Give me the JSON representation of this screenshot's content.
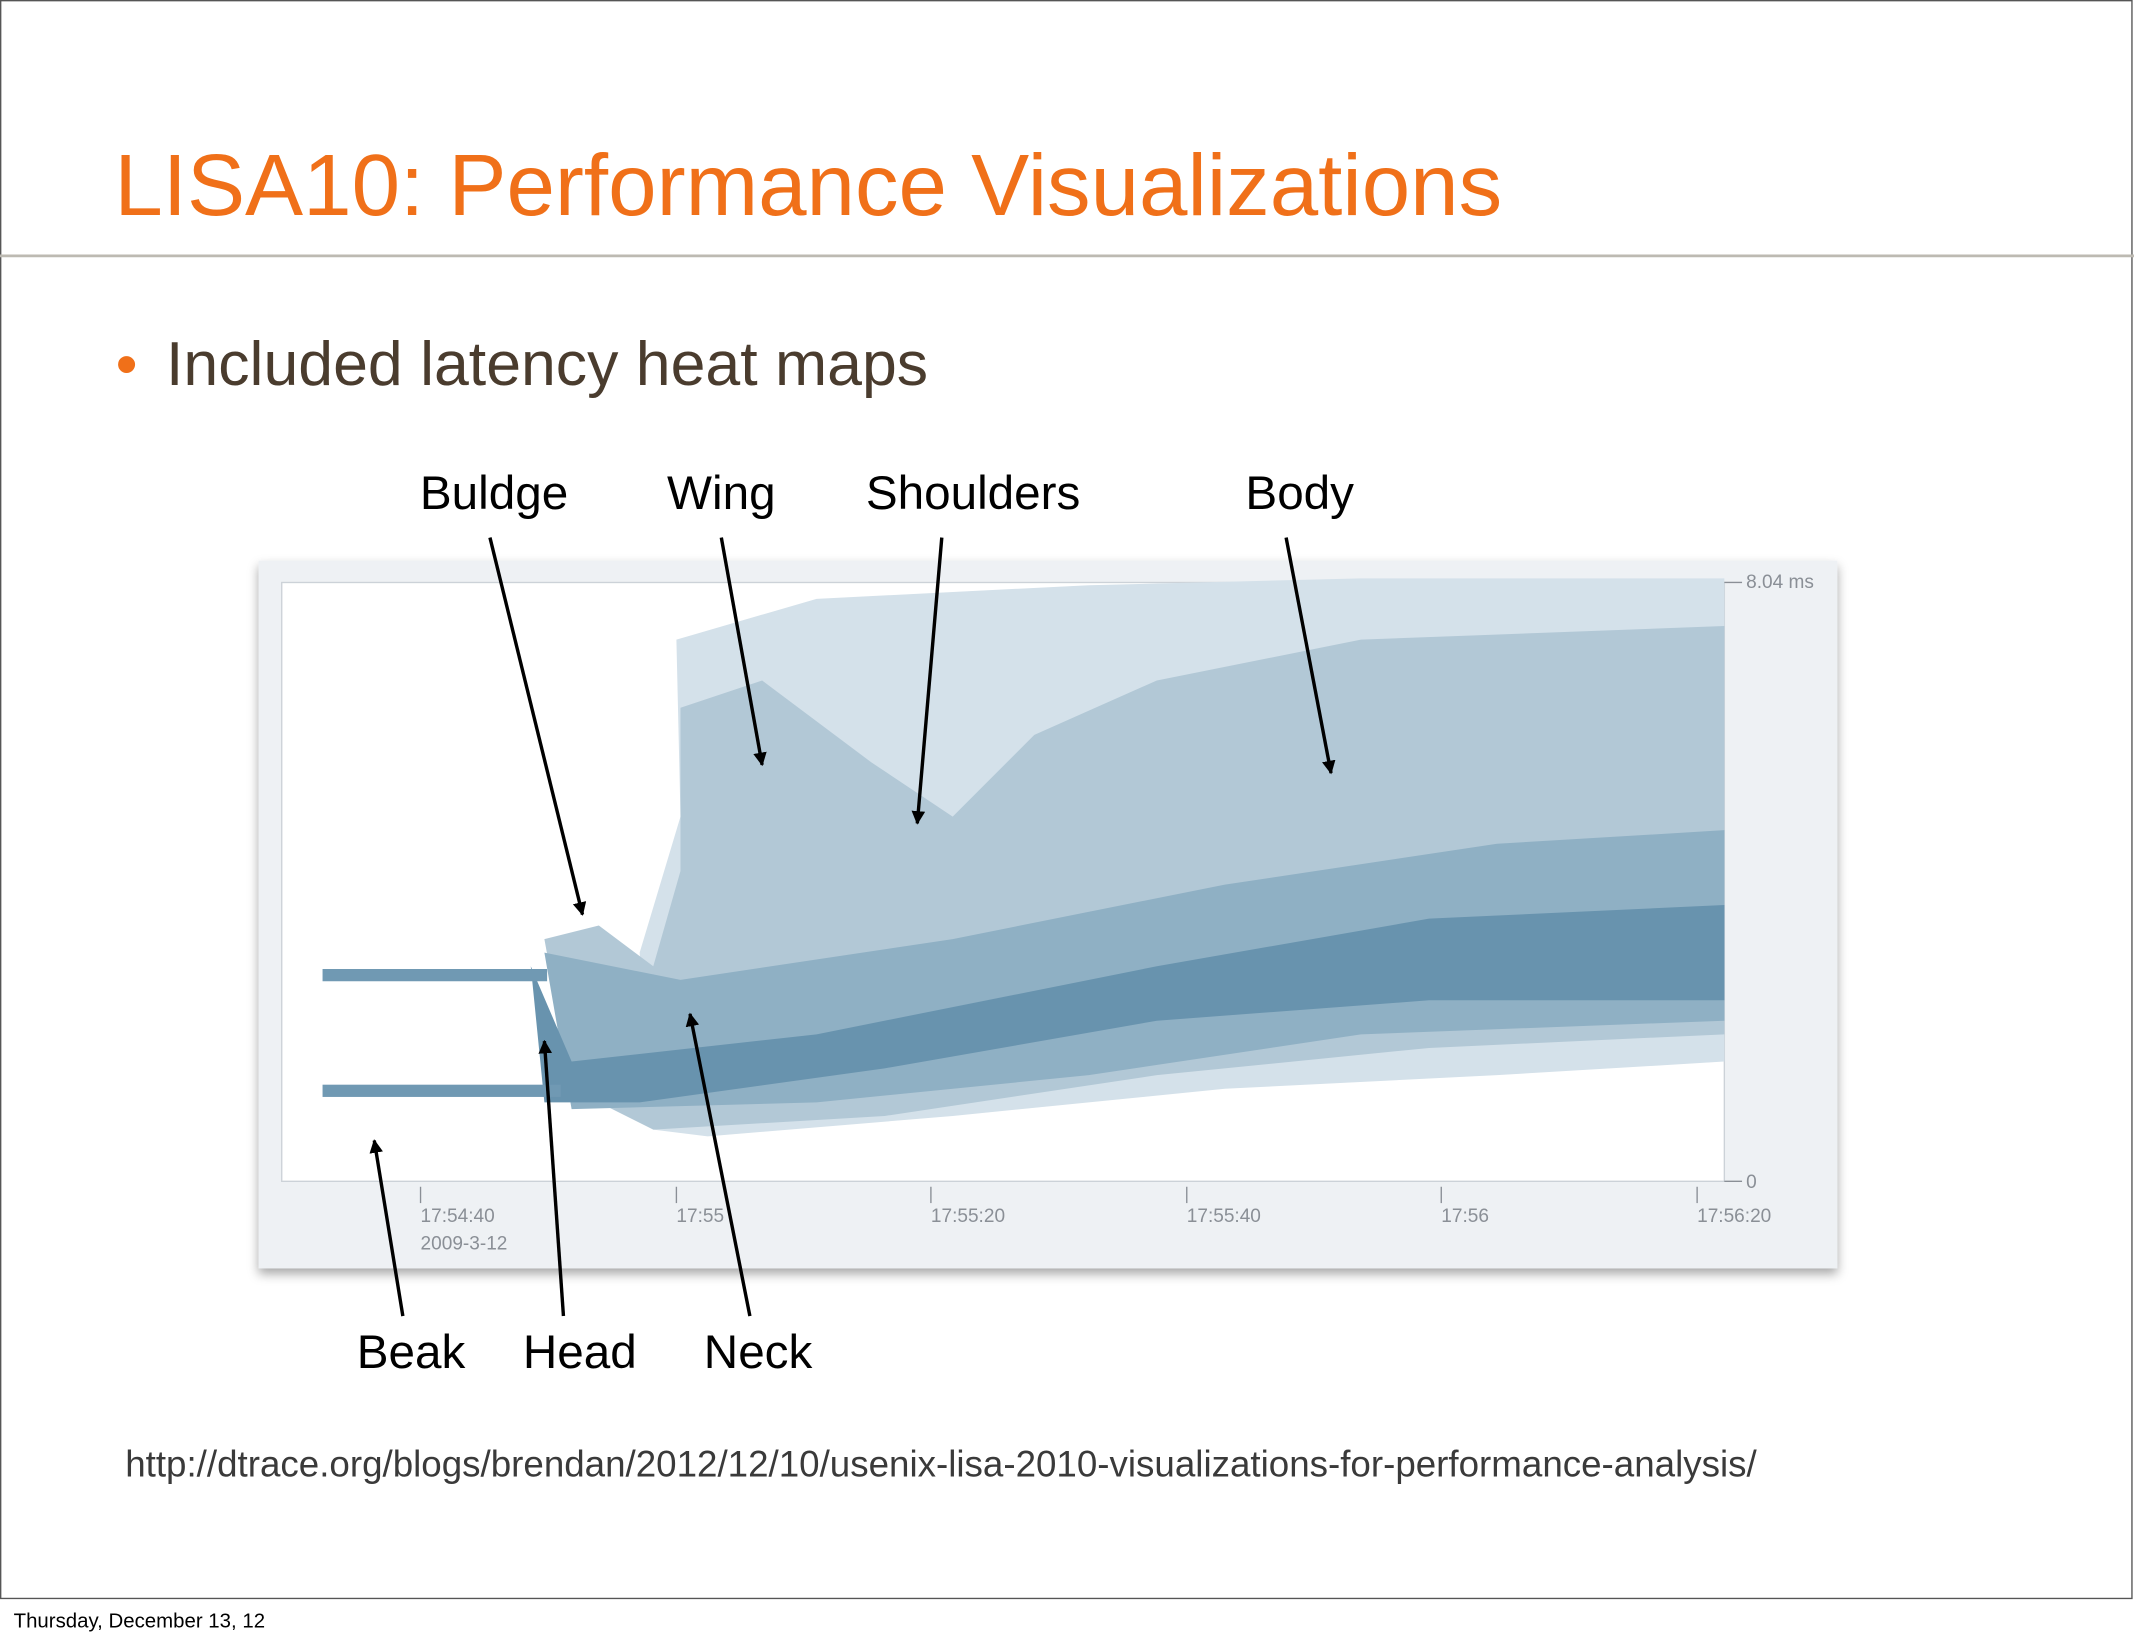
{
  "slide": {
    "title": "LISA10: Performance Visualizations",
    "bullet": "Included latency heat maps",
    "top_labels": [
      "Buldge",
      "Wing",
      "Shoulders",
      "Body"
    ],
    "bottom_labels": [
      "Beak",
      "Head",
      "Neck"
    ],
    "heatmap": {
      "y_labels": [
        "8.04 ms",
        "0"
      ],
      "x_labels": [
        "17:54:40",
        "17:55",
        "17:55:20",
        "17:55:40",
        "17:56",
        "17:56:20"
      ],
      "date_label": "2009-3-12"
    },
    "url": "http://dtrace.org/blogs/brendan/2012/12/10/usenix-lisa-2010-visualizations-for-performance-analysis/",
    "footer": "Thursday, December 13, 12"
  }
}
